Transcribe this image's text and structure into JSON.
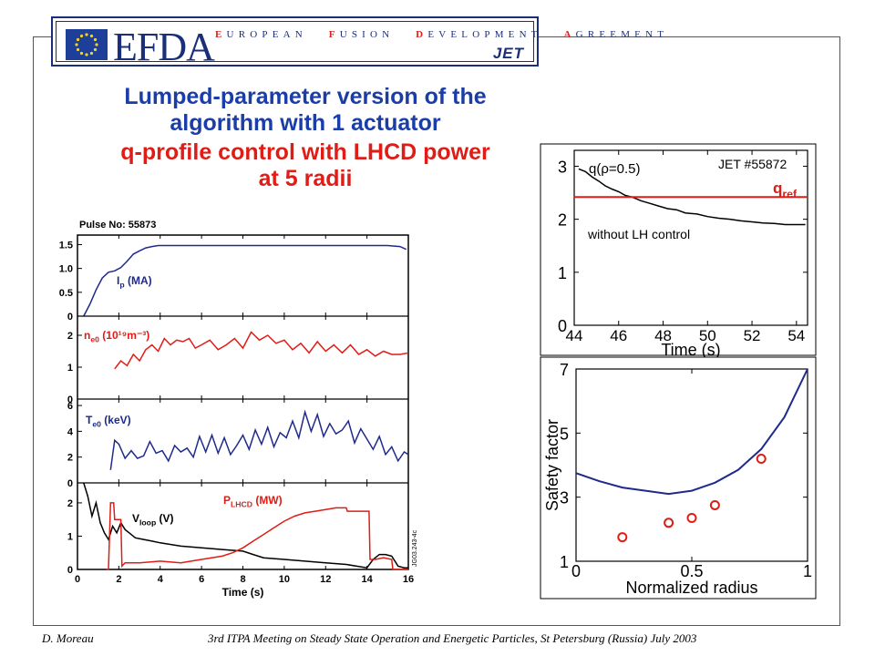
{
  "banner": {
    "org": "EFDA",
    "words": [
      {
        "cap": "E",
        "rest": "UROPEAN"
      },
      {
        "cap": "F",
        "rest": "USION"
      },
      {
        "cap": "D",
        "rest": "EVELOPMENT"
      },
      {
        "cap": "A",
        "rest": "GREEMENT"
      }
    ],
    "jet": "JET"
  },
  "title": {
    "line1": "Lumped-parameter version of the",
    "line2": "algorithm with 1 actuator",
    "line3": "q-profile control with LHCD power",
    "line4": "at 5 radii",
    "color_blue": "#1a3da8",
    "color_red": "#e01c16"
  },
  "footer": {
    "author": "D. Moreau",
    "meeting": "3rd ITPA Meeting on Steady State Operation and Energetic Particles, St Petersburg (Russia) July 2003"
  },
  "chart_data": [
    {
      "type": "line",
      "pulse_label": "Pulse No: 55873",
      "xlabel": "Time (s)",
      "xlim": [
        0,
        16
      ],
      "x_ticks": [
        0,
        2,
        4,
        6,
        8,
        10,
        12,
        14,
        16
      ],
      "side_code": "JG03.243-4c",
      "panels": [
        {
          "label_main": "I",
          "label_sub": "p",
          "label_unit": " (MA)",
          "color": "#1f2a8c",
          "ylim": [
            0,
            1.7
          ],
          "y_ticks": [
            "0",
            "0.5",
            "1.0",
            "1.5"
          ],
          "y_tick_values": [
            0,
            0.5,
            1.0,
            1.5
          ],
          "series": [
            {
              "name": "Ip",
              "color": "#1f2a8c",
              "x": [
                0.3,
                0.6,
                0.9,
                1.2,
                1.5,
                1.8,
                2.1,
                2.4,
                2.7,
                3.0,
                3.3,
                3.6,
                3.9,
                4.5,
                6,
                8,
                10,
                12,
                14,
                15,
                15.6,
                15.9
              ],
              "y": [
                0.0,
                0.25,
                0.55,
                0.8,
                0.92,
                0.95,
                1.02,
                1.15,
                1.3,
                1.37,
                1.43,
                1.46,
                1.48,
                1.48,
                1.48,
                1.48,
                1.48,
                1.48,
                1.48,
                1.48,
                1.46,
                1.4
              ]
            }
          ]
        },
        {
          "label_main": "n",
          "label_sub": "e0",
          "label_unit": " (10¹⁹m⁻³)",
          "color": "#e01c16",
          "ylim": [
            0,
            2.6
          ],
          "y_ticks": [
            "0",
            "1",
            "2"
          ],
          "y_tick_values": [
            0,
            1,
            2
          ],
          "series": [
            {
              "name": "ne0",
              "color": "#e01c16",
              "x": [
                1.8,
                2.1,
                2.4,
                2.7,
                3.0,
                3.3,
                3.6,
                3.9,
                4.2,
                4.5,
                4.8,
                5.1,
                5.4,
                5.7,
                6.0,
                6.4,
                6.8,
                7.2,
                7.6,
                8.0,
                8.4,
                8.8,
                9.2,
                9.6,
                10.0,
                10.4,
                10.8,
                11.2,
                11.6,
                12.0,
                12.4,
                12.8,
                13.2,
                13.6,
                14.0,
                14.4,
                14.8,
                15.2,
                15.6,
                16.0
              ],
              "y": [
                0.95,
                1.2,
                1.05,
                1.4,
                1.2,
                1.55,
                1.7,
                1.5,
                1.9,
                1.7,
                1.85,
                1.8,
                1.9,
                1.6,
                1.7,
                1.85,
                1.55,
                1.7,
                1.9,
                1.6,
                2.1,
                1.85,
                2.0,
                1.75,
                1.85,
                1.55,
                1.75,
                1.45,
                1.8,
                1.5,
                1.7,
                1.45,
                1.7,
                1.4,
                1.55,
                1.35,
                1.5,
                1.4,
                1.4,
                1.45
              ]
            }
          ]
        },
        {
          "label_main": "T",
          "label_sub": "e0",
          "label_unit": " (keV)",
          "color": "#1f2a8c",
          "ylim": [
            0,
            6.5
          ],
          "y_ticks": [
            "0",
            "2",
            "4",
            "6"
          ],
          "y_tick_values": [
            0,
            2,
            4,
            6
          ],
          "series": [
            {
              "name": "Te0",
              "color": "#1f2a8c",
              "x": [
                1.6,
                1.8,
                2.0,
                2.3,
                2.6,
                2.9,
                3.2,
                3.5,
                3.8,
                4.1,
                4.4,
                4.7,
                5.0,
                5.3,
                5.6,
                5.9,
                6.2,
                6.5,
                6.8,
                7.1,
                7.4,
                7.7,
                8.0,
                8.3,
                8.6,
                8.9,
                9.2,
                9.5,
                9.8,
                10.1,
                10.4,
                10.7,
                11.0,
                11.3,
                11.6,
                11.9,
                12.2,
                12.5,
                12.8,
                13.1,
                13.4,
                13.7,
                14.0,
                14.3,
                14.6,
                14.9,
                15.2,
                15.5,
                15.8,
                16.0
              ],
              "y": [
                1.0,
                3.3,
                3.0,
                1.9,
                2.5,
                1.9,
                2.1,
                3.2,
                2.3,
                2.5,
                1.7,
                2.9,
                2.4,
                2.7,
                2.0,
                3.6,
                2.4,
                3.7,
                2.3,
                3.5,
                2.2,
                2.9,
                3.7,
                2.6,
                4.1,
                3.0,
                4.3,
                2.8,
                3.9,
                3.5,
                4.8,
                3.5,
                5.5,
                4.0,
                5.3,
                3.6,
                4.6,
                3.8,
                4.1,
                4.8,
                3.1,
                4.2,
                3.4,
                2.6,
                3.6,
                2.2,
                2.8,
                1.7,
                2.4,
                2.2
              ]
            }
          ]
        },
        {
          "label_main": "V",
          "label_sub": "loop",
          "label_unit": " (V)",
          "label2_main": "P",
          "label2_sub": "LHCD",
          "label2_unit": " (MW)",
          "ylim": [
            0,
            2.6
          ],
          "y_ticks": [
            "0",
            "1",
            "2"
          ],
          "y_tick_values": [
            0,
            1,
            2
          ],
          "series": [
            {
              "name": "Vloop",
              "color": "#000000",
              "x": [
                0.3,
                0.5,
                0.7,
                0.9,
                1.1,
                1.3,
                1.5,
                1.7,
                1.9,
                2.1,
                2.3,
                2.5,
                2.8,
                3.2,
                3.6,
                4.0,
                5.0,
                6.0,
                7.0,
                8.0,
                8.5,
                9.0,
                10.0,
                11.0,
                12.0,
                13.0,
                14.0,
                14.3,
                14.6,
                14.9,
                15.2,
                15.5,
                15.8,
                16.0
              ],
              "y": [
                2.6,
                2.2,
                1.6,
                2.0,
                1.4,
                1.1,
                0.9,
                1.3,
                1.1,
                1.4,
                1.2,
                1.1,
                0.95,
                0.9,
                0.85,
                0.8,
                0.7,
                0.65,
                0.6,
                0.55,
                0.45,
                0.35,
                0.3,
                0.25,
                0.2,
                0.15,
                0.05,
                0.3,
                0.45,
                0.45,
                0.4,
                0.1,
                0.05,
                0.05
              ]
            },
            {
              "name": "PLHCD",
              "color": "#e01c16",
              "x": [
                1.4,
                1.5,
                1.6,
                1.75,
                1.8,
                2.1,
                2.15,
                2.3,
                3.0,
                4.0,
                5.0,
                6.0,
                7.0,
                7.5,
                8.0,
                8.5,
                9.0,
                9.5,
                10.0,
                10.5,
                11.0,
                11.5,
                12.0,
                12.5,
                13.0,
                13.05,
                13.5,
                14.0,
                14.1,
                14.15,
                14.4,
                14.8,
                15.2,
                15.25,
                15.5,
                16.0
              ],
              "y": [
                0.0,
                0.0,
                2.0,
                2.0,
                1.5,
                1.5,
                0.1,
                0.2,
                0.2,
                0.25,
                0.2,
                0.3,
                0.4,
                0.5,
                0.65,
                0.85,
                1.05,
                1.25,
                1.45,
                1.6,
                1.7,
                1.75,
                1.8,
                1.85,
                1.85,
                1.75,
                1.75,
                1.75,
                1.75,
                0.3,
                0.3,
                0.35,
                0.3,
                0.0,
                0.0,
                0.0
              ]
            }
          ]
        }
      ]
    },
    {
      "type": "line",
      "annotation_pulse": "JET #55872",
      "xlabel": "Time (s)",
      "xlim": [
        44,
        54.5
      ],
      "ylim": [
        0,
        3.3
      ],
      "x_ticks": [
        44,
        46,
        48,
        50,
        52,
        54
      ],
      "y_ticks": [
        0,
        1,
        2,
        3
      ],
      "series_label_main": "q(ρ=0.5)",
      "ref_label_main": "q",
      "ref_label_sub": "ref",
      "without_label": "without LH control",
      "ref_value": 2.42,
      "series": [
        {
          "name": "q",
          "color": "#000000",
          "x": [
            44.2,
            44.5,
            44.8,
            45.1,
            45.4,
            45.7,
            46.0,
            46.3,
            46.6,
            47.0,
            47.4,
            47.8,
            48.2,
            48.6,
            49.0,
            49.5,
            50.0,
            50.5,
            51.0,
            51.5,
            52.0,
            52.5,
            53.0,
            53.5,
            54.0,
            54.4
          ],
          "y": [
            2.95,
            2.9,
            2.8,
            2.72,
            2.63,
            2.57,
            2.52,
            2.45,
            2.42,
            2.35,
            2.3,
            2.25,
            2.2,
            2.18,
            2.12,
            2.1,
            2.05,
            2.02,
            2.0,
            1.97,
            1.95,
            1.93,
            1.92,
            1.9,
            1.9,
            1.9
          ]
        },
        {
          "name": "qref",
          "color": "#e01c16",
          "x": [
            44,
            54.5
          ],
          "y": [
            2.42,
            2.42
          ]
        }
      ]
    },
    {
      "type": "line",
      "xlabel": "Normalized radius",
      "ylabel": "Safety factor",
      "xlim": [
        0,
        1
      ],
      "ylim": [
        1,
        7
      ],
      "x_ticks": [
        "0",
        "0.5",
        "1"
      ],
      "x_tick_values": [
        0,
        0.5,
        1
      ],
      "y_ticks": [
        1,
        3,
        5,
        7
      ],
      "series": [
        {
          "name": "q profile",
          "color": "#1f2a8c",
          "x": [
            0,
            0.1,
            0.2,
            0.3,
            0.4,
            0.5,
            0.6,
            0.7,
            0.8,
            0.9,
            1.0
          ],
          "y": [
            3.75,
            3.5,
            3.3,
            3.2,
            3.1,
            3.2,
            3.45,
            3.85,
            4.5,
            5.5,
            7.0
          ]
        },
        {
          "name": "targets",
          "color": "#e01c16",
          "marker": "circle",
          "x": [
            0.2,
            0.4,
            0.5,
            0.6,
            0.8
          ],
          "y": [
            1.75,
            2.2,
            2.35,
            2.75,
            4.2
          ]
        }
      ]
    }
  ]
}
